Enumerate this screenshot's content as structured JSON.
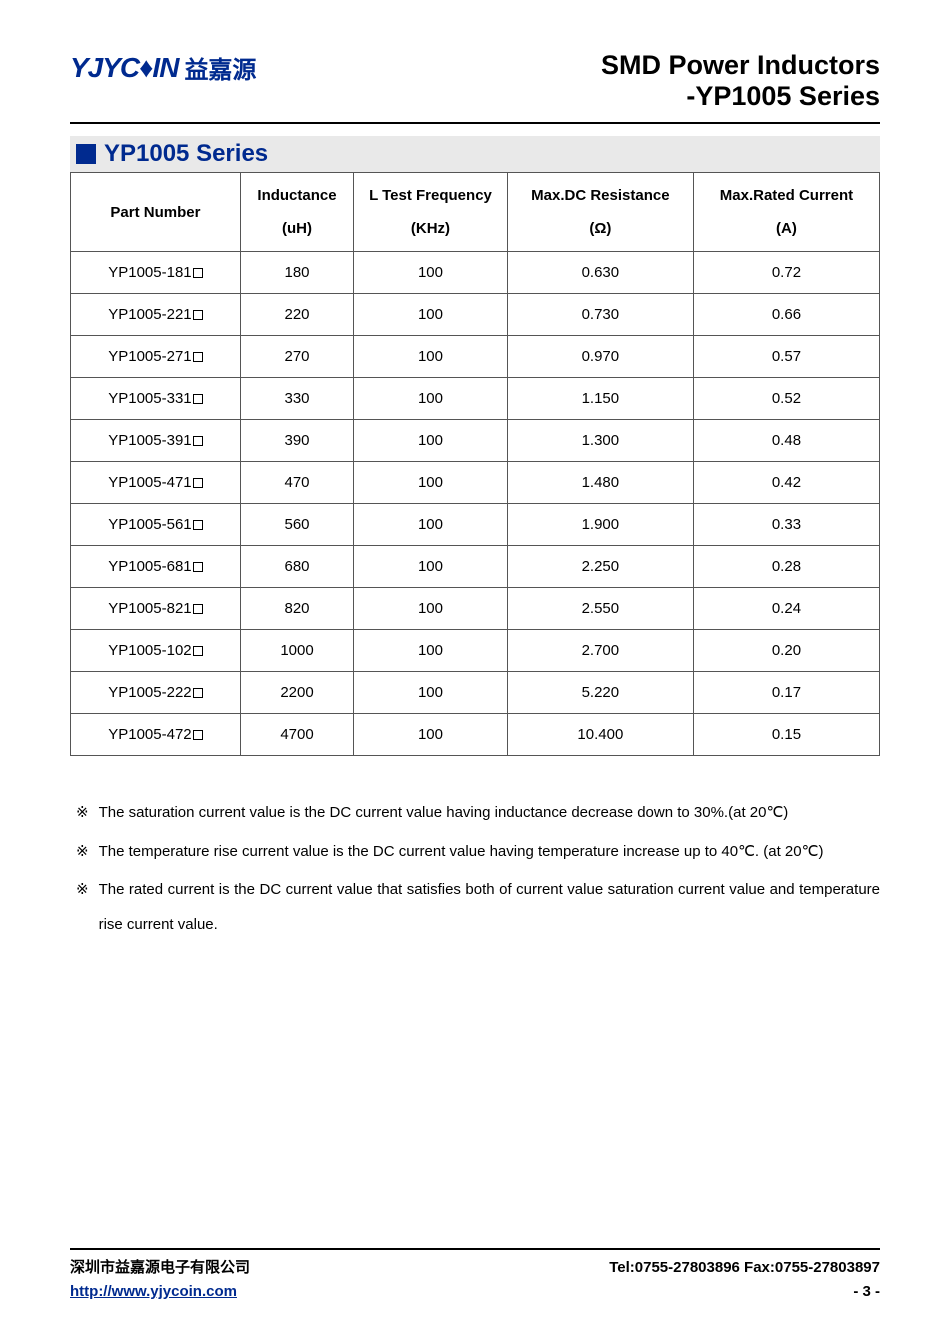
{
  "header": {
    "logo_latin": "YJYC♦IN",
    "logo_cn": "益嘉源",
    "title_line1": "SMD Power Inductors",
    "title_line2": "-YP1005 Series"
  },
  "section": {
    "title": "YP1005 Series"
  },
  "table": {
    "columns": [
      {
        "line1": "Part Number",
        "line2": ""
      },
      {
        "line1": "Inductance",
        "line2": "(uH)"
      },
      {
        "line1": "L Test Frequency",
        "line2": "(KHz)"
      },
      {
        "line1": "Max.DC Resistance",
        "line2": "(Ω)"
      },
      {
        "line1": "Max.Rated Current",
        "line2": "(A)"
      }
    ],
    "rows": [
      {
        "pn": "YP1005-181",
        "ind": "180",
        "freq": "100",
        "dcr": "0.630",
        "cur": "0.72"
      },
      {
        "pn": "YP1005-221",
        "ind": "220",
        "freq": "100",
        "dcr": "0.730",
        "cur": "0.66"
      },
      {
        "pn": "YP1005-271",
        "ind": "270",
        "freq": "100",
        "dcr": "0.970",
        "cur": "0.57"
      },
      {
        "pn": "YP1005-331",
        "ind": "330",
        "freq": "100",
        "dcr": "1.150",
        "cur": "0.52"
      },
      {
        "pn": "YP1005-391",
        "ind": "390",
        "freq": "100",
        "dcr": "1.300",
        "cur": "0.48"
      },
      {
        "pn": "YP1005-471",
        "ind": "470",
        "freq": "100",
        "dcr": "1.480",
        "cur": "0.42"
      },
      {
        "pn": "YP1005-561",
        "ind": "560",
        "freq": "100",
        "dcr": "1.900",
        "cur": "0.33"
      },
      {
        "pn": "YP1005-681",
        "ind": "680",
        "freq": "100",
        "dcr": "2.250",
        "cur": "0.28"
      },
      {
        "pn": "YP1005-821",
        "ind": "820",
        "freq": "100",
        "dcr": "2.550",
        "cur": "0.24"
      },
      {
        "pn": "YP1005-102",
        "ind": "1000",
        "freq": "100",
        "dcr": "2.700",
        "cur": "0.20"
      },
      {
        "pn": "YP1005-222",
        "ind": "2200",
        "freq": "100",
        "dcr": "5.220",
        "cur": "0.17"
      },
      {
        "pn": "YP1005-472",
        "ind": "4700",
        "freq": "100",
        "dcr": "10.400",
        "cur": "0.15"
      }
    ],
    "col_widths": [
      "21%",
      "14%",
      "19%",
      "23%",
      "23%"
    ]
  },
  "notes": {
    "mark": "※",
    "items": [
      "The saturation current value is the DC current value having inductance decrease down to 30%.(at 20℃)",
      "The temperature rise current value is the DC current value having temperature increase up to 40℃. (at 20℃)",
      "The rated current is the DC current value that satisfies both of current value saturation current value and temperature rise current value."
    ]
  },
  "footer": {
    "company": "深圳市益嘉源电子有限公司",
    "contact": "Tel:0755-27803896   Fax:0755-27803897",
    "url": "http://www.yjycoin.com",
    "page": "- 3 -"
  },
  "styling": {
    "brand_color": "#002a8f",
    "section_bg": "#e9e9e9",
    "border_color": "#555555",
    "body_font_size": 15,
    "title_font_size": 27,
    "section_title_font_size": 24
  }
}
